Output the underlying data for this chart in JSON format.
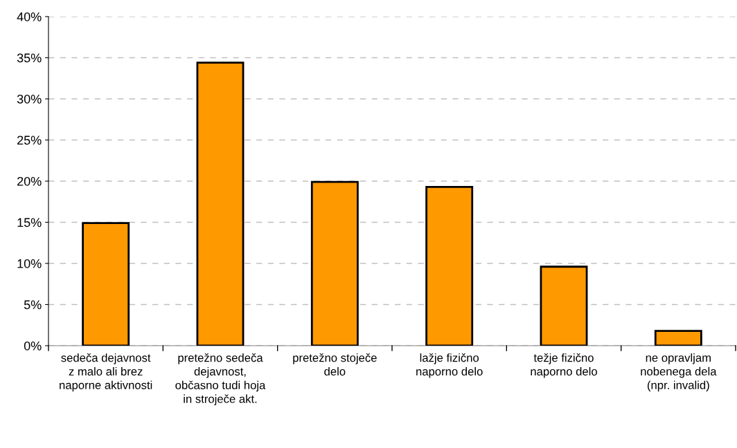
{
  "chart_data": {
    "type": "bar",
    "categories": [
      "sedeča dejavnost z malo ali brez naporne aktivnosti",
      "pretežno sedeča dejavnost, občasno tudi hoja in stroječe akt.",
      "pretežno stoječe delo",
      "lažje fizično naporno delo",
      "težje fizično naporno delo",
      "ne opravljam nobenega dela (npr. invalid)"
    ],
    "values": [
      14.9,
      34.4,
      19.9,
      19.3,
      9.6,
      1.8
    ],
    "color": "#ff9900",
    "ylim": [
      0,
      40
    ],
    "yticks": [
      {
        "value": 0,
        "label": "0%"
      },
      {
        "value": 5,
        "label": "5%"
      },
      {
        "value": 10,
        "label": "10%"
      },
      {
        "value": 15,
        "label": "15%"
      },
      {
        "value": 20,
        "label": "20%"
      },
      {
        "value": 25,
        "label": "25%"
      },
      {
        "value": 30,
        "label": "30%"
      },
      {
        "value": 35,
        "label": "35%"
      },
      {
        "value": 40,
        "label": "40%"
      }
    ],
    "grid": "y",
    "legend": false
  }
}
